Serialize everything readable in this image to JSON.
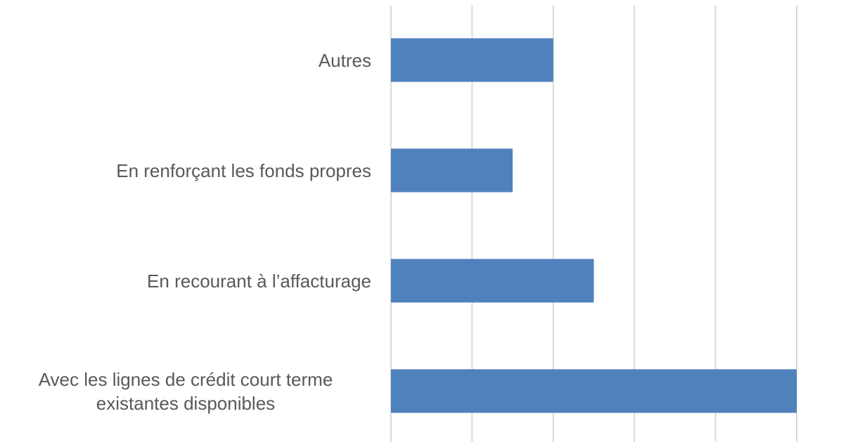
{
  "chart_data": {
    "type": "bar",
    "orientation": "horizontal",
    "categories": [
      "Autres",
      "En renforçant les fonds propres",
      "En recourant à l’affacturage",
      "Avec les lignes de crédit court terme existantes disponibles"
    ],
    "values": [
      2,
      1.5,
      2.5,
      5
    ],
    "color": "#4f81bd",
    "xlim": [
      0,
      5
    ],
    "xticks": [
      0,
      1,
      2,
      3,
      4,
      5
    ],
    "grid": true
  }
}
